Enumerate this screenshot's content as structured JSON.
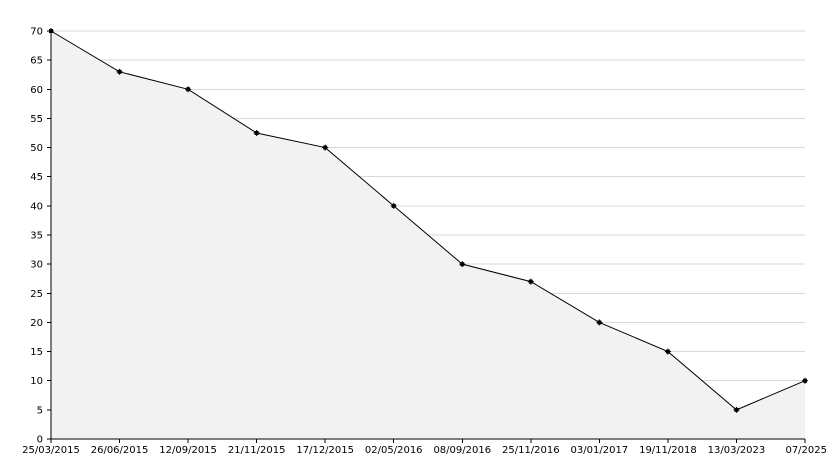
{
  "chart_data": {
    "type": "area",
    "categories": [
      "25/03/2015",
      "26/06/2015",
      "12/09/2015",
      "21/11/2015",
      "17/12/2015",
      "02/05/2016",
      "08/09/2016",
      "25/11/2016",
      "03/01/2017",
      "19/11/2018",
      "13/03/2023",
      "07/2025"
    ],
    "values": [
      70,
      63,
      60,
      52.5,
      50,
      40,
      30,
      27,
      20,
      15,
      5,
      10
    ],
    "yticks": [
      0,
      5,
      10,
      15,
      20,
      25,
      30,
      35,
      40,
      45,
      50,
      55,
      60,
      65,
      70
    ],
    "ylim": [
      0,
      70
    ],
    "title": "",
    "xlabel": "",
    "ylabel": "",
    "grid": true,
    "legend": "none",
    "colors": {
      "line": "#000000",
      "fill": "#f2f2f2",
      "grid": "#d9d9d9",
      "axis": "#000000"
    }
  }
}
